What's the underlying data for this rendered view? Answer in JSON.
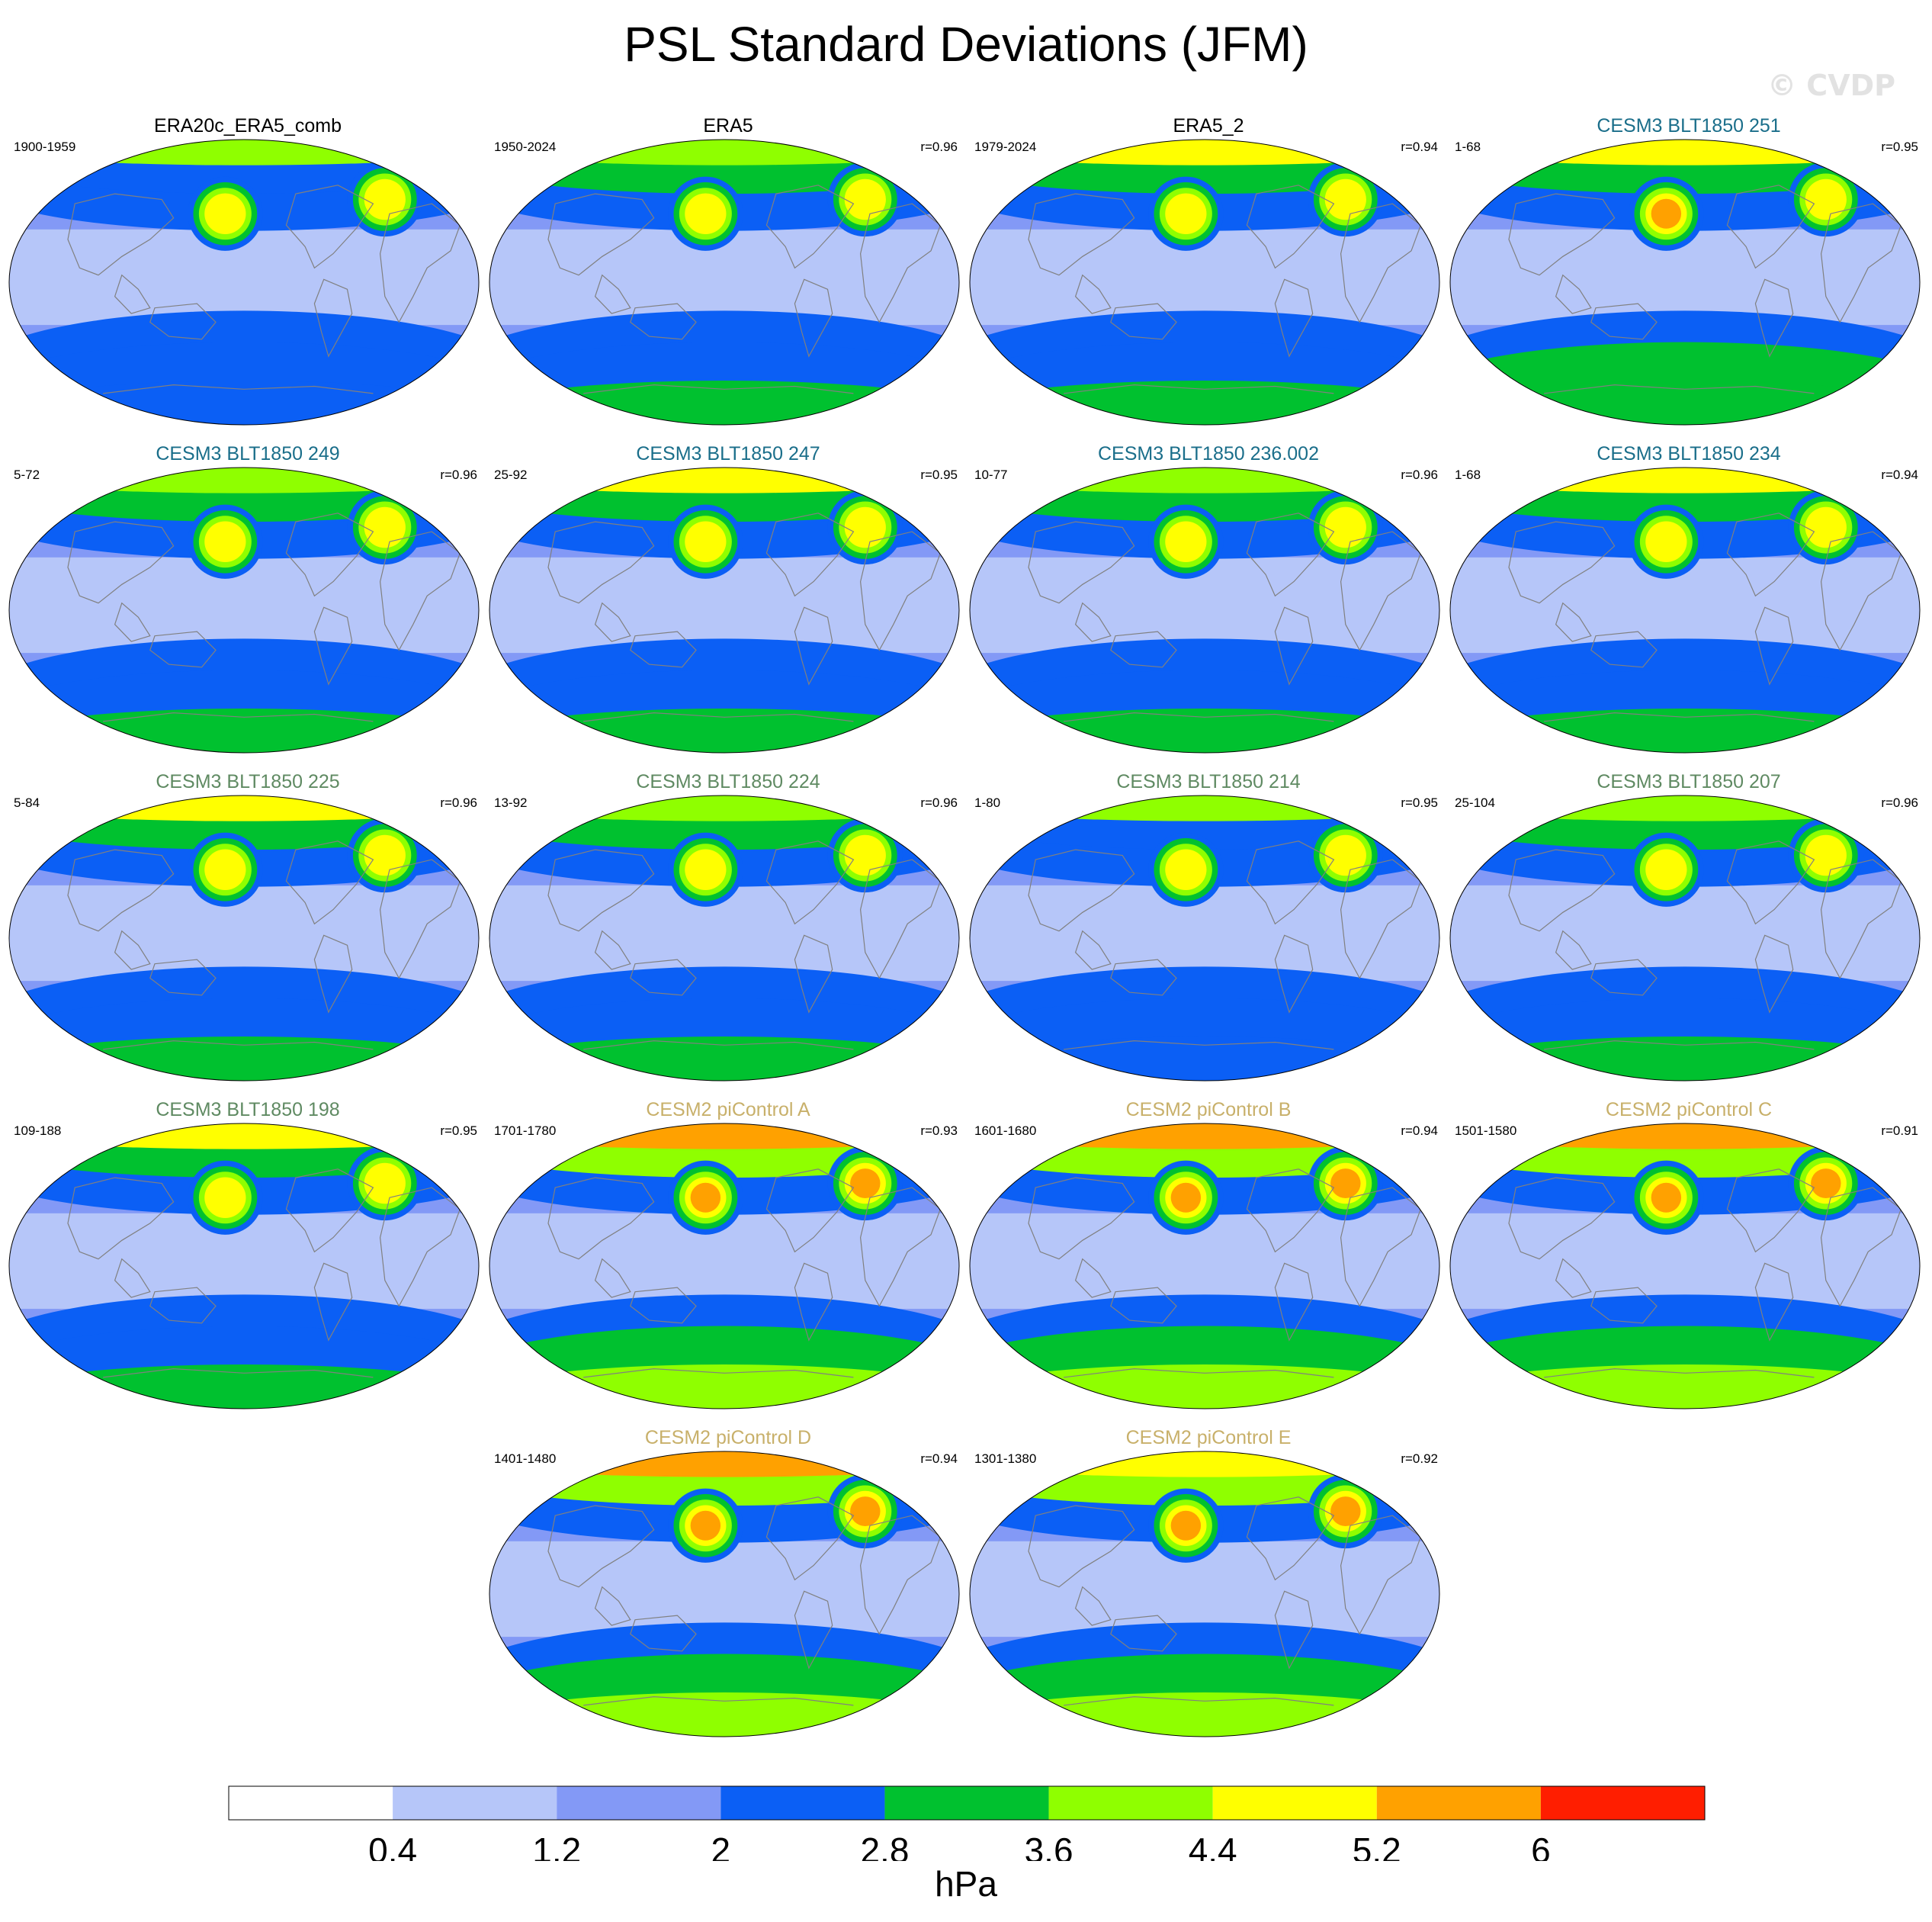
{
  "title": "PSL Standard Deviations (JFM)",
  "watermark": "© CVDP",
  "colors": {
    "title_obs": "#000000",
    "title_cesm3_blue": "#1a6e8a",
    "title_cesm3_green": "#5f8a62",
    "title_cesm2": "#c8b06a",
    "coast": "#808080"
  },
  "colorbar": {
    "unit": "hPa",
    "ticks": [
      "0.4",
      "1.2",
      "2",
      "2.8",
      "3.6",
      "4.4",
      "5.2",
      "6"
    ],
    "colors": [
      "#ffffff",
      "#b6c6f9",
      "#8399f6",
      "#0b5ff5",
      "#00c12f",
      "#8fff00",
      "#ffff00",
      "#ffa100",
      "#ff1e00"
    ]
  },
  "panels": [
    {
      "title": "ERA20c_ERA5_comb",
      "years": "1900-1959",
      "r": "",
      "group": "obs",
      "amp": 0.85
    },
    {
      "title": "ERA5",
      "years": "1950-2024",
      "r": "r=0.96",
      "group": "obs",
      "amp": 0.9
    },
    {
      "title": "ERA5_2",
      "years": "1979-2024",
      "r": "r=0.94",
      "group": "obs",
      "amp": 1.0
    },
    {
      "title": "CESM3 BLT1850 251",
      "years": "1-68",
      "r": "r=0.95",
      "group": "cesm3_blue",
      "amp": 1.1
    },
    {
      "title": "CESM3 BLT1850 249",
      "years": "5-72",
      "r": "r=0.96",
      "group": "cesm3_blue",
      "amp": 0.95
    },
    {
      "title": "CESM3 BLT1850 247",
      "years": "25-92",
      "r": "r=0.95",
      "group": "cesm3_blue",
      "amp": 1.05
    },
    {
      "title": "CESM3 BLT1850 236.002",
      "years": "10-77",
      "r": "r=0.96",
      "group": "cesm3_blue",
      "amp": 0.95
    },
    {
      "title": "CESM3 BLT1850 234",
      "years": "1-68",
      "r": "r=0.94",
      "group": "cesm3_blue",
      "amp": 1.05
    },
    {
      "title": "CESM3 BLT1850 225",
      "years": "5-84",
      "r": "r=0.96",
      "group": "cesm3_green",
      "amp": 1.0
    },
    {
      "title": "CESM3 BLT1850 224",
      "years": "13-92",
      "r": "r=0.96",
      "group": "cesm3_green",
      "amp": 0.95
    },
    {
      "title": "CESM3 BLT1850 214",
      "years": "1-80",
      "r": "r=0.95",
      "group": "cesm3_green",
      "amp": 0.85
    },
    {
      "title": "CESM3 BLT1850 207",
      "years": "25-104",
      "r": "r=0.96",
      "group": "cesm3_green",
      "amp": 0.9
    },
    {
      "title": "CESM3 BLT1850 198",
      "years": "109-188",
      "r": "r=0.95",
      "group": "cesm3_green",
      "amp": 1.05
    },
    {
      "title": "CESM2 piControl A",
      "years": "1701-1780",
      "r": "r=0.93",
      "group": "cesm2",
      "amp": 1.25
    },
    {
      "title": "CESM2 piControl B",
      "years": "1601-1680",
      "r": "r=0.94",
      "group": "cesm2",
      "amp": 1.2
    },
    {
      "title": "CESM2 piControl C",
      "years": "1501-1580",
      "r": "r=0.91",
      "group": "cesm2",
      "amp": 1.2
    },
    {
      "title": "CESM2 piControl D",
      "years": "1401-1480",
      "r": "r=0.94",
      "group": "cesm2",
      "amp": 1.25
    },
    {
      "title": "CESM2 piControl E",
      "years": "1301-1380",
      "r": "r=0.92",
      "group": "cesm2",
      "amp": 1.15
    }
  ]
}
